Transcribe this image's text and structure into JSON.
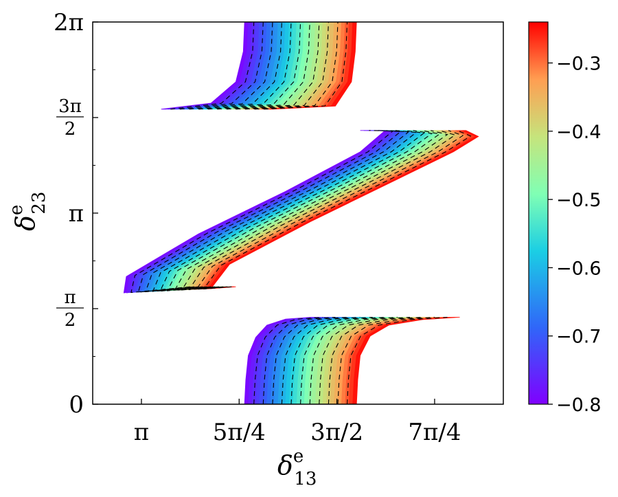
{
  "chart_data": {
    "type": "heatmap",
    "title": "",
    "xlabel": {
      "main": "δ",
      "sup": "e",
      "sub": "13"
    },
    "ylabel": {
      "main": "δ",
      "sup": "e",
      "sub": "23"
    },
    "xlim": [
      2.75,
      6.05
    ],
    "ylim": [
      0,
      6.2832
    ],
    "x_ticks": [
      {
        "value": 3.1416,
        "label": "π"
      },
      {
        "value": 3.927,
        "label": "5π/4"
      },
      {
        "value": 4.7124,
        "label": "3π/2"
      },
      {
        "value": 5.4978,
        "label": "7π/4"
      }
    ],
    "y_ticks": [
      {
        "value": 0,
        "label": "0"
      },
      {
        "value": 1.5708,
        "num": "π",
        "den": "2"
      },
      {
        "value": 3.1416,
        "label": "π"
      },
      {
        "value": 4.7124,
        "num": "3π",
        "den": "2"
      },
      {
        "value": 6.2832,
        "label": "2π"
      }
    ],
    "y_minor_ticks": [
      0.7854,
      2.3562,
      3.927,
      5.4978
    ],
    "colorbar": {
      "min": -0.8,
      "max": -0.24,
      "colormap": "rainbow",
      "ticks": [
        -0.3,
        -0.4,
        -0.5,
        -0.6,
        -0.7,
        -0.8
      ],
      "tick_labels": [
        "−0.3",
        "−0.4",
        "−0.5",
        "−0.6",
        "−0.7",
        "−0.8"
      ]
    },
    "contour_lines": "dashed black",
    "grid": false,
    "regions": [
      {
        "name": "lower band",
        "left_edge": [
          [
            3.97,
            0.0
          ],
          [
            3.98,
            0.4
          ],
          [
            4.0,
            0.8
          ],
          [
            4.06,
            1.1
          ],
          [
            4.15,
            1.3
          ],
          [
            4.3,
            1.4
          ],
          [
            4.5,
            1.43
          ]
        ],
        "right_edge": [
          [
            4.87,
            0.0
          ],
          [
            4.88,
            0.4
          ],
          [
            4.9,
            0.8
          ],
          [
            4.98,
            1.12
          ],
          [
            5.13,
            1.3
          ],
          [
            5.4,
            1.39
          ],
          [
            5.7,
            1.43
          ]
        ]
      },
      {
        "name": "middle band",
        "left_edge": [
          [
            3.5,
            1.93
          ],
          [
            3.0,
            1.83
          ],
          [
            3.02,
            2.1
          ],
          [
            3.6,
            2.8
          ],
          [
            4.3,
            3.5
          ],
          [
            4.9,
            4.15
          ],
          [
            5.1,
            4.5
          ],
          [
            4.9,
            4.5
          ]
        ],
        "right_edge": [
          [
            3.9,
            1.93
          ],
          [
            3.7,
            1.9
          ],
          [
            3.85,
            2.3
          ],
          [
            4.5,
            3.0
          ],
          [
            5.2,
            3.7
          ],
          [
            5.65,
            4.15
          ],
          [
            5.85,
            4.4
          ],
          [
            5.75,
            4.5
          ]
        ]
      },
      {
        "name": "upper band",
        "left_edge": [
          [
            3.3,
            4.85
          ],
          [
            3.7,
            4.95
          ],
          [
            3.9,
            5.3
          ],
          [
            3.96,
            5.8
          ],
          [
            3.97,
            6.2832
          ]
        ],
        "right_edge": [
          [
            4.2,
            4.85
          ],
          [
            4.7,
            4.9
          ],
          [
            4.83,
            5.3
          ],
          [
            4.86,
            5.8
          ],
          [
            4.87,
            6.2832
          ]
        ]
      }
    ]
  }
}
